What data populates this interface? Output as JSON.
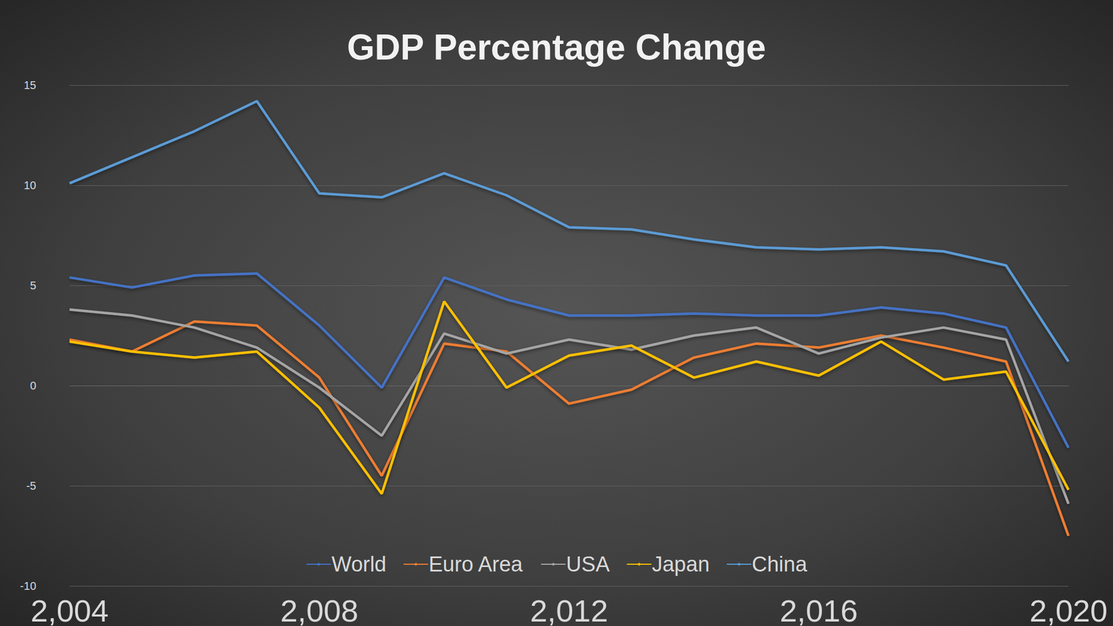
{
  "chart_data": {
    "type": "line",
    "title": "GDP Percentage Change",
    "x": [
      2004,
      2005,
      2006,
      2007,
      2008,
      2009,
      2010,
      2011,
      2012,
      2013,
      2014,
      2015,
      2016,
      2017,
      2018,
      2019,
      2020
    ],
    "xlim": [
      2004,
      2020
    ],
    "xticks": [
      2004,
      2008,
      2012,
      2016,
      2020
    ],
    "ylim": [
      -10,
      15
    ],
    "yticks": [
      -10,
      -5,
      0,
      5,
      10,
      15
    ],
    "grid": true,
    "legend": "bottom",
    "series": [
      {
        "name": "World",
        "color": "#4472c4",
        "values": [
          5.4,
          4.9,
          5.5,
          5.6,
          3.0,
          -0.1,
          5.4,
          4.3,
          3.5,
          3.5,
          3.6,
          3.5,
          3.5,
          3.9,
          3.6,
          2.9,
          -3.1
        ]
      },
      {
        "name": "Euro Area",
        "color": "#ed7d31",
        "values": [
          2.3,
          1.7,
          3.2,
          3.0,
          0.4,
          -4.5,
          2.1,
          1.7,
          -0.9,
          -0.2,
          1.4,
          2.1,
          1.9,
          2.5,
          1.9,
          1.2,
          -7.5
        ]
      },
      {
        "name": "USA",
        "color": "#a5a5a5",
        "values": [
          3.8,
          3.5,
          2.9,
          1.9,
          -0.1,
          -2.5,
          2.6,
          1.6,
          2.3,
          1.8,
          2.5,
          2.9,
          1.6,
          2.4,
          2.9,
          2.3,
          -5.9
        ]
      },
      {
        "name": "Japan",
        "color": "#ffc000",
        "values": [
          2.2,
          1.7,
          1.4,
          1.7,
          -1.1,
          -5.4,
          4.2,
          -0.1,
          1.5,
          2.0,
          0.4,
          1.2,
          0.5,
          2.2,
          0.3,
          0.7,
          -5.2
        ]
      },
      {
        "name": "China",
        "color": "#5b9bd5",
        "values": [
          10.1,
          11.4,
          12.7,
          14.2,
          9.6,
          9.4,
          10.6,
          9.5,
          7.9,
          7.8,
          7.3,
          6.9,
          6.8,
          6.9,
          6.7,
          6.0,
          1.2
        ]
      }
    ]
  }
}
